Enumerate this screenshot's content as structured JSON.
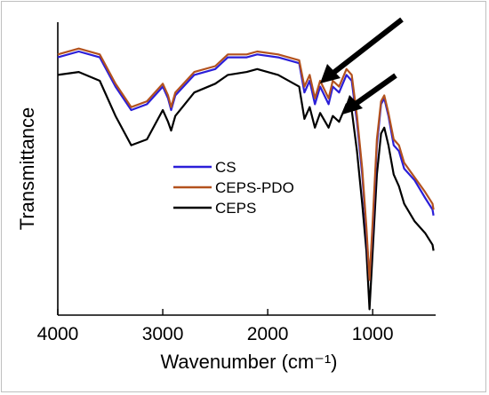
{
  "chart_data": {
    "type": "line",
    "title": "",
    "xlabel": "Wavenumber (cm⁻¹)",
    "ylabel": "Transmittance",
    "xlim": [
      4000,
      400
    ],
    "ylim": [
      0,
      100
    ],
    "x_ticks": [
      4000,
      3000,
      2000,
      1000
    ],
    "x_tick_labels": [
      "4000",
      "3000",
      "2000",
      "1000"
    ],
    "y_tick_labels": [],
    "grid": false,
    "legend_position": "center",
    "series": [
      {
        "name": "CS",
        "color": "#2b1ed8",
        "points": [
          [
            4000,
            88
          ],
          [
            3800,
            90
          ],
          [
            3600,
            88
          ],
          [
            3450,
            78
          ],
          [
            3300,
            70
          ],
          [
            3150,
            72
          ],
          [
            3000,
            78
          ],
          [
            2950,
            74
          ],
          [
            2920,
            70
          ],
          [
            2880,
            75
          ],
          [
            2700,
            82
          ],
          [
            2500,
            84
          ],
          [
            2380,
            88
          ],
          [
            2200,
            88
          ],
          [
            2100,
            89
          ],
          [
            1900,
            88
          ],
          [
            1700,
            86
          ],
          [
            1650,
            76
          ],
          [
            1600,
            80
          ],
          [
            1550,
            72
          ],
          [
            1500,
            78
          ],
          [
            1420,
            72
          ],
          [
            1380,
            78
          ],
          [
            1320,
            76
          ],
          [
            1250,
            82
          ],
          [
            1200,
            80
          ],
          [
            1150,
            66
          ],
          [
            1100,
            48
          ],
          [
            1060,
            28
          ],
          [
            1030,
            12
          ],
          [
            1000,
            30
          ],
          [
            960,
            58
          ],
          [
            920,
            72
          ],
          [
            890,
            74
          ],
          [
            850,
            68
          ],
          [
            800,
            58
          ],
          [
            750,
            56
          ],
          [
            700,
            50
          ],
          [
            600,
            46
          ],
          [
            500,
            40
          ],
          [
            430,
            36
          ],
          [
            420,
            34
          ]
        ]
      },
      {
        "name": "CEPS-PDO",
        "color": "#b3521e",
        "points": [
          [
            4000,
            89
          ],
          [
            3800,
            91
          ],
          [
            3600,
            89
          ],
          [
            3450,
            79
          ],
          [
            3300,
            71
          ],
          [
            3150,
            73
          ],
          [
            3000,
            79
          ],
          [
            2950,
            75
          ],
          [
            2920,
            71
          ],
          [
            2880,
            76
          ],
          [
            2700,
            83
          ],
          [
            2500,
            85
          ],
          [
            2380,
            89
          ],
          [
            2200,
            89
          ],
          [
            2100,
            90
          ],
          [
            1900,
            89
          ],
          [
            1700,
            87
          ],
          [
            1650,
            78
          ],
          [
            1600,
            82
          ],
          [
            1550,
            74
          ],
          [
            1500,
            80
          ],
          [
            1420,
            74
          ],
          [
            1380,
            80
          ],
          [
            1320,
            78
          ],
          [
            1250,
            84
          ],
          [
            1200,
            82
          ],
          [
            1150,
            68
          ],
          [
            1100,
            50
          ],
          [
            1060,
            30
          ],
          [
            1030,
            12
          ],
          [
            1000,
            32
          ],
          [
            960,
            60
          ],
          [
            920,
            73
          ],
          [
            890,
            75
          ],
          [
            850,
            69
          ],
          [
            800,
            60
          ],
          [
            750,
            58
          ],
          [
            700,
            52
          ],
          [
            600,
            47
          ],
          [
            500,
            42
          ],
          [
            430,
            38
          ],
          [
            420,
            36
          ]
        ]
      },
      {
        "name": "CEPS",
        "color": "#000000",
        "points": [
          [
            4000,
            82
          ],
          [
            3800,
            83
          ],
          [
            3600,
            80
          ],
          [
            3450,
            68
          ],
          [
            3300,
            58
          ],
          [
            3150,
            60
          ],
          [
            3000,
            70
          ],
          [
            2950,
            66
          ],
          [
            2920,
            63
          ],
          [
            2880,
            68
          ],
          [
            2700,
            76
          ],
          [
            2500,
            79
          ],
          [
            2380,
            82
          ],
          [
            2200,
            83
          ],
          [
            2100,
            84
          ],
          [
            1900,
            82
          ],
          [
            1700,
            78
          ],
          [
            1650,
            67
          ],
          [
            1600,
            71
          ],
          [
            1550,
            64
          ],
          [
            1500,
            69
          ],
          [
            1420,
            64
          ],
          [
            1380,
            68
          ],
          [
            1320,
            66
          ],
          [
            1250,
            72
          ],
          [
            1200,
            70
          ],
          [
            1150,
            56
          ],
          [
            1100,
            38
          ],
          [
            1060,
            22
          ],
          [
            1030,
            2
          ],
          [
            1000,
            22
          ],
          [
            960,
            48
          ],
          [
            920,
            62
          ],
          [
            890,
            64
          ],
          [
            850,
            58
          ],
          [
            800,
            48
          ],
          [
            750,
            44
          ],
          [
            700,
            38
          ],
          [
            600,
            32
          ],
          [
            500,
            28
          ],
          [
            430,
            24
          ],
          [
            420,
            22
          ]
        ]
      }
    ]
  }
}
